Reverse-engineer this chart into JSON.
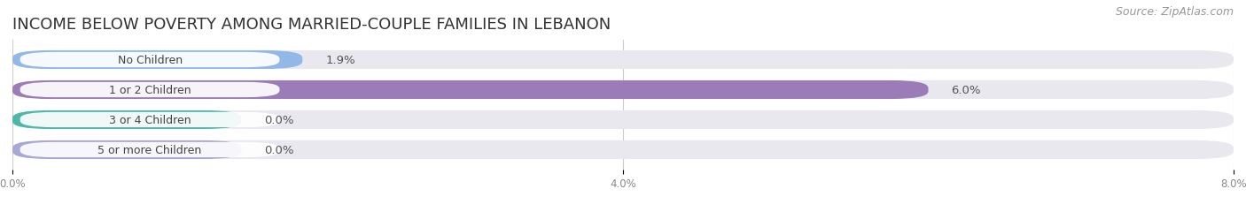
{
  "title": "INCOME BELOW POVERTY AMONG MARRIED-COUPLE FAMILIES IN LEBANON",
  "source": "Source: ZipAtlas.com",
  "categories": [
    "No Children",
    "1 or 2 Children",
    "3 or 4 Children",
    "5 or more Children"
  ],
  "values": [
    1.9,
    6.0,
    0.0,
    0.0
  ],
  "bar_colors": [
    "#92b8e8",
    "#9b7bb8",
    "#4db8a8",
    "#a8a8d8"
  ],
  "xlim": [
    0,
    8.0
  ],
  "xticks": [
    0.0,
    4.0,
    8.0
  ],
  "xticklabels": [
    "0.0%",
    "4.0%",
    "8.0%"
  ],
  "background_color": "#ffffff",
  "bar_background_color": "#e8e8ee",
  "title_fontsize": 13,
  "source_fontsize": 9,
  "bar_height": 0.62,
  "bar_label_fontsize": 9.5,
  "category_fontsize": 9,
  "zero_bar_width": 1.5
}
